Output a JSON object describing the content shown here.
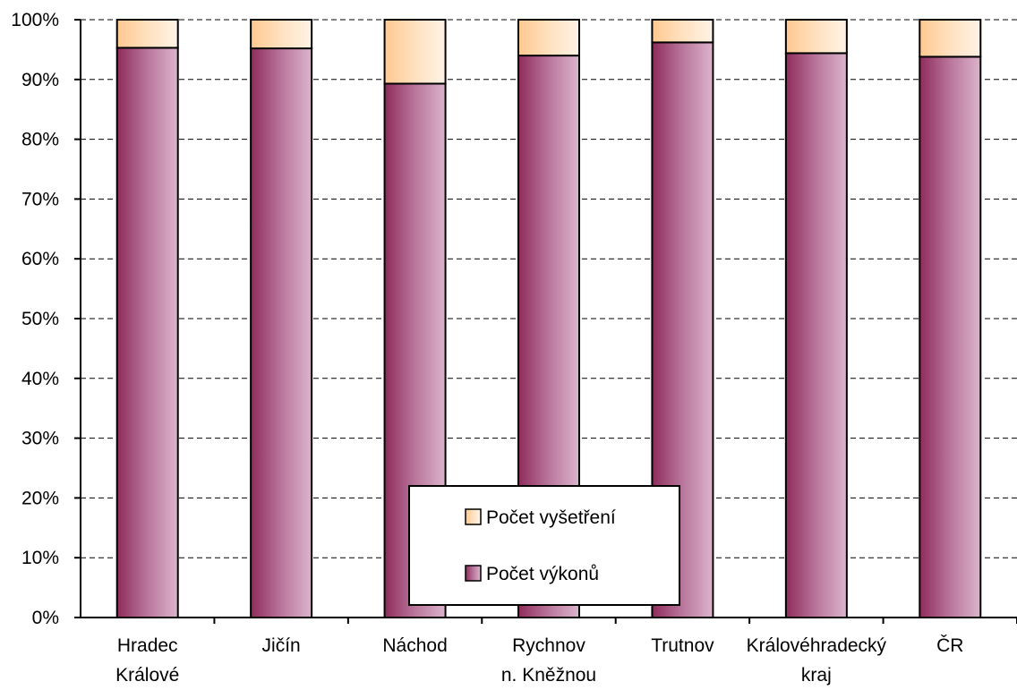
{
  "chart_data": {
    "type": "bar",
    "stacked": true,
    "percent_stacked": true,
    "categories": [
      [
        "Hradec",
        "Králové"
      ],
      [
        "Jičín"
      ],
      [
        "Náchod"
      ],
      [
        "Rychnov",
        "n. Kněžnou"
      ],
      [
        "Trutnov"
      ],
      [
        "Královéhradecký",
        "kraj"
      ],
      [
        "ČR"
      ]
    ],
    "series": [
      {
        "name": "Počet výkonů",
        "values": [
          95.3,
          95.2,
          89.3,
          94.0,
          96.2,
          94.4,
          93.8
        ],
        "color": "#993366"
      },
      {
        "name": "Počet vyšetření",
        "values": [
          4.7,
          4.8,
          10.7,
          6.0,
          3.8,
          5.6,
          6.2
        ],
        "color": "#FFCC99"
      }
    ],
    "ylim": [
      0,
      100
    ],
    "yticks": [
      "0%",
      "10%",
      "20%",
      "30%",
      "40%",
      "50%",
      "60%",
      "70%",
      "80%",
      "90%",
      "100%"
    ],
    "grid": true,
    "legend_order": [
      "Počet vyšetření",
      "Počet výkonů"
    ]
  }
}
